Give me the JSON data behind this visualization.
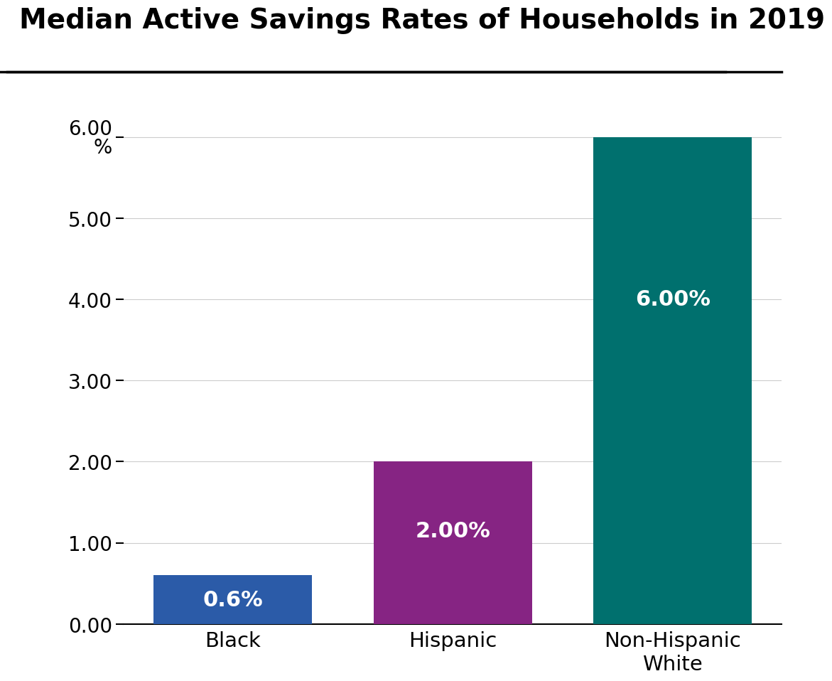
{
  "title": "Median Active Savings Rates of Households in 2019",
  "categories": [
    "Black",
    "Hispanic",
    "Non-Hispanic\nWhite"
  ],
  "values": [
    0.6,
    2.0,
    6.0
  ],
  "bar_colors": [
    "#2B5BA8",
    "#862483",
    "#00706E"
  ],
  "bar_labels": [
    "0.6%",
    "2.00%",
    "6.00%"
  ],
  "ylim": [
    0,
    6.8
  ],
  "yticks": [
    0.0,
    1.0,
    2.0,
    3.0,
    4.0,
    5.0,
    6.0
  ],
  "ytick_labels": [
    "0.00",
    "1.00",
    "2.00",
    "3.00",
    "4.00",
    "5.00",
    "6.00\n%"
  ],
  "title_fontsize": 28,
  "label_fontsize": 21,
  "tick_fontsize": 20,
  "bar_label_fontsize": 22,
  "background_color": "#FFFFFF",
  "grid_color": "#CCCCCC",
  "top_border_color": "#000000"
}
